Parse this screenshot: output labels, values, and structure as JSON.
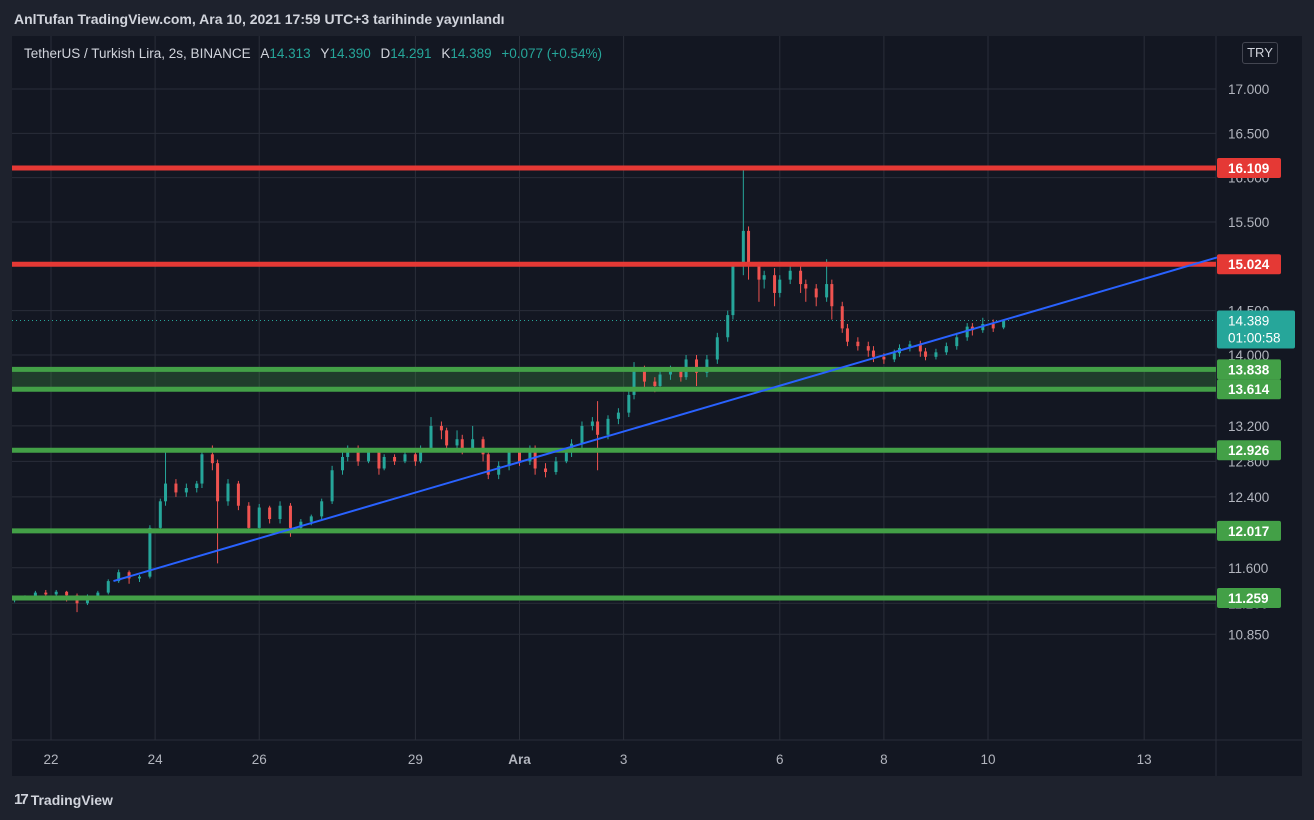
{
  "header": {
    "publish_text": "AnlTufan TradingView.com, Ara 10, 2021 17:59 UTC+3 tarihinde yayınlandı"
  },
  "legend": {
    "symbol": "TetherUS / Turkish Lira, 2s, BINANCE",
    "open_label": "A",
    "open_value": "14.313",
    "high_label": "Y",
    "high_value": "14.390",
    "low_label": "D",
    "low_value": "14.291",
    "close_label": "K",
    "close_value": "14.389",
    "change": "+0.077 (+0.54%)"
  },
  "currency_button": "TRY",
  "footer": {
    "brand": "TradingView",
    "logo_mark": "17"
  },
  "colors": {
    "background": "#131722",
    "up": "#26a69a",
    "down": "#ef5350",
    "resistance": "#e53935",
    "support": "#43a047",
    "trendline": "#2962ff"
  },
  "chart_data": {
    "type": "line",
    "ylim": [
      10.5,
      17.25
    ],
    "y_ticks": [
      {
        "value": 17.0,
        "label": "17.000"
      },
      {
        "value": 16.5,
        "label": "16.500"
      },
      {
        "value": 16.0,
        "label": "16.000"
      },
      {
        "value": 15.5,
        "label": "15.500"
      },
      {
        "value": 14.5,
        "label": "14.500"
      },
      {
        "value": 14.0,
        "label": "14.000"
      },
      {
        "value": 13.2,
        "label": "13.200"
      },
      {
        "value": 12.8,
        "label": "12.800"
      },
      {
        "value": 12.4,
        "label": "12.400"
      },
      {
        "value": 11.6,
        "label": "11.600"
      },
      {
        "value": 11.2,
        "label": "11.200"
      },
      {
        "value": 10.85,
        "label": "10.850"
      }
    ],
    "x_ticks": [
      {
        "label": "22",
        "day": 22
      },
      {
        "label": "24",
        "day": 24
      },
      {
        "label": "26",
        "day": 26
      },
      {
        "label": "29",
        "day": 29
      },
      {
        "label": "Ara",
        "day": 31
      },
      {
        "label": "3",
        "day": 33
      },
      {
        "label": "6",
        "day": 36
      },
      {
        "label": "8",
        "day": 38
      },
      {
        "label": "10",
        "day": 40
      },
      {
        "label": "13",
        "day": 43
      }
    ],
    "xlim": [
      21.25,
      44.4
    ],
    "levels": [
      {
        "value": 16.109,
        "label": "16.109",
        "kind": "resistance"
      },
      {
        "value": 15.024,
        "label": "15.024",
        "kind": "resistance"
      },
      {
        "value": 13.838,
        "label": "13.838",
        "kind": "support"
      },
      {
        "value": 13.614,
        "label": "13.614",
        "kind": "support"
      },
      {
        "value": 12.926,
        "label": "12.926",
        "kind": "support"
      },
      {
        "value": 12.017,
        "label": "12.017",
        "kind": "support"
      },
      {
        "value": 11.259,
        "label": "11.259",
        "kind": "support"
      }
    ],
    "zone": {
      "from": 13.614,
      "to": 13.838
    },
    "trendline": {
      "start": [
        23.2,
        11.45
      ],
      "end": [
        44.4,
        15.1
      ]
    },
    "last_price": {
      "value": 14.389,
      "label": "14.389",
      "countdown": "01:00:58"
    },
    "candles": [
      [
        21.3,
        11.23,
        11.26,
        11.21,
        11.27
      ],
      [
        21.5,
        11.26,
        11.28,
        11.24,
        11.29
      ],
      [
        21.7,
        11.28,
        11.32,
        11.26,
        11.34
      ],
      [
        21.9,
        11.32,
        11.3,
        11.27,
        11.35
      ],
      [
        22.1,
        11.3,
        11.33,
        11.28,
        11.35
      ],
      [
        22.3,
        11.33,
        11.29,
        11.22,
        11.34
      ],
      [
        22.5,
        11.29,
        11.2,
        11.1,
        11.31
      ],
      [
        22.7,
        11.2,
        11.28,
        11.18,
        11.3
      ],
      [
        22.9,
        11.28,
        11.32,
        11.26,
        11.34
      ],
      [
        23.1,
        11.32,
        11.45,
        11.3,
        11.47
      ],
      [
        23.3,
        11.45,
        11.55,
        11.43,
        11.58
      ],
      [
        23.5,
        11.55,
        11.48,
        11.42,
        11.57
      ],
      [
        23.7,
        11.48,
        11.5,
        11.44,
        11.52
      ],
      [
        23.9,
        11.5,
        12.05,
        11.48,
        12.08
      ],
      [
        24.1,
        12.05,
        12.35,
        12.0,
        12.38
      ],
      [
        24.2,
        12.35,
        12.55,
        12.3,
        12.9
      ],
      [
        24.4,
        12.55,
        12.45,
        12.4,
        12.6
      ],
      [
        24.6,
        12.45,
        12.5,
        12.4,
        12.55
      ],
      [
        24.8,
        12.5,
        12.55,
        12.45,
        12.58
      ],
      [
        24.9,
        12.55,
        12.88,
        12.5,
        12.92
      ],
      [
        25.1,
        12.88,
        12.78,
        12.7,
        12.98
      ],
      [
        25.2,
        12.78,
        12.35,
        11.65,
        12.82
      ],
      [
        25.4,
        12.35,
        12.55,
        12.3,
        12.6
      ],
      [
        25.6,
        12.55,
        12.3,
        12.25,
        12.58
      ],
      [
        25.8,
        12.3,
        12.05,
        12.0,
        12.34
      ],
      [
        26.0,
        12.05,
        12.28,
        12.02,
        12.32
      ],
      [
        26.2,
        12.28,
        12.15,
        12.1,
        12.3
      ],
      [
        26.4,
        12.15,
        12.3,
        12.1,
        12.35
      ],
      [
        26.6,
        12.3,
        12.05,
        11.95,
        12.33
      ],
      [
        26.8,
        12.05,
        12.12,
        12.0,
        12.15
      ],
      [
        27.0,
        12.12,
        12.18,
        12.08,
        12.2
      ],
      [
        27.2,
        12.18,
        12.35,
        12.15,
        12.38
      ],
      [
        27.4,
        12.35,
        12.7,
        12.32,
        12.75
      ],
      [
        27.6,
        12.7,
        12.85,
        12.65,
        12.9
      ],
      [
        27.7,
        12.85,
        12.95,
        12.8,
        12.98
      ],
      [
        27.9,
        12.95,
        12.8,
        12.75,
        12.98
      ],
      [
        28.1,
        12.8,
        12.92,
        12.78,
        12.95
      ],
      [
        28.3,
        12.92,
        12.72,
        12.65,
        12.94
      ],
      [
        28.4,
        12.72,
        12.85,
        12.7,
        12.88
      ],
      [
        28.6,
        12.85,
        12.8,
        12.76,
        12.88
      ],
      [
        28.8,
        12.8,
        12.88,
        12.78,
        12.92
      ],
      [
        29.0,
        12.88,
        12.8,
        12.75,
        12.9
      ],
      [
        29.1,
        12.8,
        12.95,
        12.78,
        12.98
      ],
      [
        29.3,
        12.95,
        13.2,
        12.92,
        13.3
      ],
      [
        29.5,
        13.2,
        13.15,
        13.05,
        13.25
      ],
      [
        29.6,
        13.15,
        12.98,
        12.9,
        13.18
      ],
      [
        29.8,
        12.98,
        13.05,
        12.95,
        13.15
      ],
      [
        29.9,
        13.05,
        12.92,
        12.88,
        13.1
      ],
      [
        30.1,
        12.92,
        13.05,
        12.9,
        13.2
      ],
      [
        30.3,
        13.05,
        12.88,
        12.8,
        13.08
      ],
      [
        30.4,
        12.88,
        12.65,
        12.6,
        12.9
      ],
      [
        30.6,
        12.65,
        12.75,
        12.6,
        12.8
      ],
      [
        30.8,
        12.75,
        12.92,
        12.7,
        12.95
      ],
      [
        31.0,
        12.92,
        12.8,
        12.75,
        12.95
      ],
      [
        31.2,
        12.8,
        12.95,
        12.76,
        12.98
      ],
      [
        31.3,
        12.95,
        12.72,
        12.65,
        12.98
      ],
      [
        31.5,
        12.72,
        12.68,
        12.62,
        12.78
      ],
      [
        31.7,
        12.68,
        12.8,
        12.65,
        12.85
      ],
      [
        31.9,
        12.8,
        12.9,
        12.78,
        12.95
      ],
      [
        32.0,
        12.9,
        13.0,
        12.85,
        13.05
      ],
      [
        32.2,
        13.0,
        13.2,
        12.95,
        13.25
      ],
      [
        32.4,
        13.2,
        13.25,
        13.15,
        13.3
      ],
      [
        32.5,
        13.25,
        13.1,
        12.7,
        13.48
      ],
      [
        32.7,
        13.1,
        13.28,
        13.05,
        13.32
      ],
      [
        32.9,
        13.28,
        13.35,
        13.22,
        13.4
      ],
      [
        33.1,
        13.35,
        13.55,
        13.3,
        13.6
      ],
      [
        33.2,
        13.55,
        13.85,
        13.5,
        13.92
      ],
      [
        33.4,
        13.85,
        13.7,
        13.62,
        13.88
      ],
      [
        33.6,
        13.7,
        13.65,
        13.58,
        13.75
      ],
      [
        33.7,
        13.65,
        13.78,
        13.62,
        13.82
      ],
      [
        33.9,
        13.78,
        13.82,
        13.72,
        13.88
      ],
      [
        34.1,
        13.82,
        13.75,
        13.7,
        13.85
      ],
      [
        34.2,
        13.75,
        13.95,
        13.72,
        14.0
      ],
      [
        34.4,
        13.95,
        13.8,
        13.65,
        14.0
      ],
      [
        34.6,
        13.8,
        13.95,
        13.75,
        14.0
      ],
      [
        34.8,
        13.95,
        14.2,
        13.9,
        14.25
      ],
      [
        35.0,
        14.2,
        14.45,
        14.15,
        14.5
      ],
      [
        35.1,
        14.45,
        15.0,
        14.4,
        15.05
      ],
      [
        35.3,
        15.0,
        15.4,
        14.9,
        16.1
      ],
      [
        35.4,
        15.4,
        15.0,
        14.85,
        15.45
      ],
      [
        35.6,
        15.0,
        14.85,
        14.6,
        15.05
      ],
      [
        35.7,
        14.85,
        14.9,
        14.75,
        14.95
      ],
      [
        35.9,
        14.9,
        14.7,
        14.55,
        14.98
      ],
      [
        36.0,
        14.7,
        14.85,
        14.65,
        14.9
      ],
      [
        36.2,
        14.85,
        14.95,
        14.8,
        15.0
      ],
      [
        36.4,
        14.95,
        14.8,
        14.7,
        15.02
      ],
      [
        36.5,
        14.8,
        14.75,
        14.6,
        14.85
      ],
      [
        36.7,
        14.75,
        14.65,
        14.55,
        14.8
      ],
      [
        36.9,
        14.65,
        14.8,
        14.6,
        15.08
      ],
      [
        37.0,
        14.8,
        14.55,
        14.4,
        14.85
      ],
      [
        37.2,
        14.55,
        14.3,
        14.25,
        14.6
      ],
      [
        37.3,
        14.3,
        14.15,
        14.1,
        14.35
      ],
      [
        37.5,
        14.15,
        14.1,
        14.05,
        14.2
      ],
      [
        37.7,
        14.1,
        14.05,
        13.98,
        14.15
      ],
      [
        37.8,
        14.05,
        13.98,
        13.92,
        14.1
      ],
      [
        38.0,
        13.98,
        13.95,
        13.9,
        14.02
      ],
      [
        38.2,
        13.95,
        14.02,
        13.92,
        14.06
      ],
      [
        38.3,
        14.02,
        14.08,
        13.98,
        14.12
      ],
      [
        38.5,
        14.08,
        14.12,
        14.04,
        14.16
      ],
      [
        38.7,
        14.12,
        14.04,
        13.98,
        14.16
      ],
      [
        38.8,
        14.04,
        13.98,
        13.94,
        14.08
      ],
      [
        39.0,
        13.98,
        14.03,
        13.95,
        14.07
      ],
      [
        39.2,
        14.03,
        14.1,
        14.0,
        14.14
      ],
      [
        39.4,
        14.1,
        14.2,
        14.06,
        14.25
      ],
      [
        39.6,
        14.2,
        14.32,
        14.16,
        14.36
      ],
      [
        39.7,
        14.32,
        14.28,
        14.22,
        14.36
      ],
      [
        39.9,
        14.28,
        14.35,
        14.25,
        14.42
      ],
      [
        40.1,
        14.35,
        14.3,
        14.26,
        14.4
      ],
      [
        40.3,
        14.31,
        14.389,
        14.291,
        14.39
      ]
    ]
  }
}
